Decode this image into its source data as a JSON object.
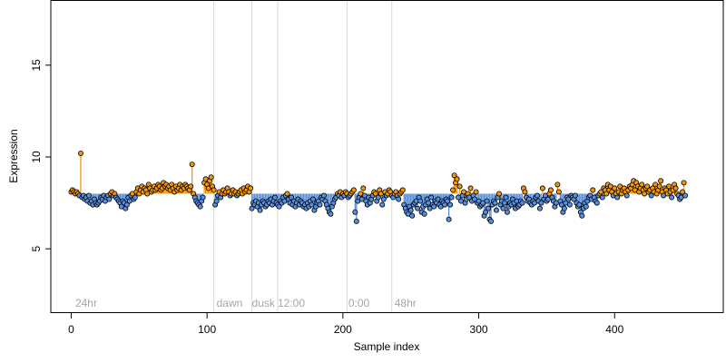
{
  "chart_data": {
    "type": "scatter",
    "title": "",
    "xlabel": "Sample index",
    "ylabel": "Expression",
    "xlim": [
      -15,
      480
    ],
    "ylim": [
      1.5,
      18.5
    ],
    "xticks": [
      0,
      100,
      200,
      300,
      400
    ],
    "yticks": [
      5,
      10,
      15
    ],
    "grid": false,
    "colors": {
      "baseline": "#5b8fd9",
      "above": "#f0960f",
      "point_stroke": "#000000",
      "separator": "#d9d9d9",
      "group_label": "#a6a6a6"
    },
    "baseline_y": 8.0,
    "group_labels": [
      {
        "text": "24hr",
        "x": 3
      },
      {
        "text": "dawn",
        "x": 107
      },
      {
        "text": "dusk",
        "x": 133
      },
      {
        "text": "12:00",
        "x": 152
      },
      {
        "text": "0:00",
        "x": 204
      },
      {
        "text": "48hr",
        "x": 238
      }
    ],
    "separators_x": [
      105,
      133,
      152,
      203,
      236
    ],
    "series": [
      {
        "values": [
          8.1,
          8.2,
          8.1,
          8.0,
          8.1,
          8.0,
          7.9,
          10.2,
          7.8,
          7.9,
          7.7,
          7.8,
          7.6,
          7.9,
          7.5,
          7.6,
          7.4,
          7.7,
          7.5,
          7.4,
          7.5,
          7.6,
          7.8,
          7.7,
          7.9,
          7.6,
          7.8,
          7.9,
          7.7,
          8.0,
          8.1,
          7.9,
          8.0,
          7.8,
          7.7,
          7.6,
          7.5,
          7.3,
          7.6,
          7.5,
          7.2,
          7.4,
          7.8,
          7.6,
          7.9,
          8.0,
          7.7,
          7.8,
          8.1,
          8.3,
          8.0,
          8.2,
          8.4,
          8.1,
          8.3,
          8.2,
          8.0,
          8.5,
          8.3,
          8.1,
          8.2,
          8.4,
          8.2,
          8.3,
          8.5,
          8.4,
          8.2,
          8.3,
          8.6,
          8.4,
          8.5,
          8.3,
          8.4,
          8.2,
          8.5,
          8.3,
          8.1,
          8.4,
          8.2,
          8.3,
          8.5,
          8.2,
          8.4,
          8.3,
          8.5,
          8.4,
          8.3,
          8.2,
          8.4,
          9.6,
          8.0,
          7.8,
          7.6,
          7.5,
          7.4,
          7.3,
          7.6,
          7.8,
          8.6,
          8.8,
          8.5,
          8.3,
          8.7,
          8.9,
          8.4,
          8.2,
          7.4,
          7.6,
          7.9,
          8.1,
          7.8,
          8.0,
          8.2,
          8.0,
          8.1,
          8.3,
          8.1,
          7.9,
          8.0,
          8.2,
          8.0,
          8.1,
          7.9,
          8.0,
          8.1,
          8.2,
          8.0,
          8.3,
          8.1,
          8.2,
          8.4,
          8.1,
          8.3,
          7.2,
          7.5,
          7.4,
          7.6,
          7.3,
          7.5,
          7.1,
          7.4,
          7.6,
          7.5,
          7.3,
          7.4,
          7.6,
          7.5,
          7.7,
          7.4,
          7.6,
          7.8,
          7.5,
          7.4,
          7.3,
          7.6,
          7.5,
          7.8,
          7.6,
          7.9,
          8.0,
          7.7,
          7.5,
          7.8,
          7.4,
          7.6,
          7.3,
          7.5,
          7.7,
          7.4,
          7.6,
          7.5,
          7.3,
          7.4,
          7.2,
          7.5,
          7.3,
          7.6,
          7.4,
          7.7,
          7.1,
          7.3,
          7.5,
          7.6,
          7.4,
          7.8,
          7.7,
          7.9,
          7.6,
          7.4,
          7.2,
          7.0,
          6.9,
          7.3,
          7.5,
          7.7,
          7.8,
          8.0,
          7.9,
          8.1,
          7.8,
          8.0,
          7.9,
          8.1,
          8.0,
          7.8,
          7.9,
          8.0,
          8.1,
          8.2,
          7.0,
          6.5,
          7.6,
          7.8,
          8.0,
          7.7,
          8.3,
          7.9,
          7.6,
          7.4,
          7.8,
          7.5,
          7.7,
          7.9,
          8.1,
          8.0,
          7.6,
          7.8,
          8.2,
          8.0,
          7.4,
          7.7,
          8.1,
          7.9,
          8.0,
          8.2,
          8.1,
          7.9,
          7.8,
          8.0,
          8.1,
          7.9,
          7.7,
          8.0,
          8.1,
          8.2,
          7.4,
          7.2,
          7.0,
          6.9,
          7.3,
          7.1,
          6.8,
          7.4,
          7.5,
          7.6,
          7.2,
          7.8,
          7.6,
          7.0,
          7.3,
          6.9,
          7.4,
          7.7,
          7.5,
          7.2,
          7.8,
          7.4,
          7.3,
          7.6,
          7.5,
          7.7,
          7.4,
          7.3,
          7.6,
          7.5,
          7.4,
          7.7,
          7.6,
          6.6,
          7.4,
          7.8,
          8.2,
          9.0,
          8.6,
          8.8,
          7.8,
          8.4,
          7.6,
          7.9,
          8.1,
          7.5,
          7.7,
          8.0,
          7.8,
          8.3,
          7.6,
          7.9,
          7.7,
          8.1,
          7.5,
          7.6,
          7.3,
          7.4,
          7.5,
          6.8,
          7.0,
          7.6,
          7.2,
          6.6,
          6.5,
          7.4,
          7.6,
          7.5,
          7.1,
          7.8,
          8.0,
          7.4,
          7.6,
          7.2,
          7.5,
          7.8,
          7.0,
          7.3,
          7.5,
          7.4,
          7.7,
          7.5,
          7.2,
          7.6,
          7.3,
          7.4,
          7.6,
          7.5,
          8.3,
          8.1,
          7.8,
          7.6,
          7.7,
          7.5,
          7.4,
          7.6,
          7.5,
          7.8,
          7.9,
          7.6,
          7.2,
          7.5,
          8.3,
          7.7,
          7.9,
          7.6,
          7.7,
          8.0,
          8.2,
          7.8,
          7.6,
          7.3,
          7.5,
          8.5,
          8.1,
          7.6,
          7.4,
          7.0,
          7.2,
          7.5,
          7.8,
          7.7,
          7.4,
          7.9,
          7.8,
          7.7,
          7.9,
          7.5,
          7.3,
          7.4,
          7.0,
          6.8,
          7.2,
          7.5,
          7.3,
          7.6,
          7.8,
          7.9,
          7.7,
          8.2,
          7.8,
          7.6,
          7.5,
          7.9,
          8.0,
          8.1,
          7.8,
          8.3,
          8.2,
          8.0,
          8.5,
          8.2,
          8.4,
          8.1,
          7.9,
          8.3,
          8.0,
          7.8,
          8.1,
          8.4,
          8.0,
          8.2,
          8.3,
          8.1,
          7.9,
          8.2,
          8.4,
          8.3,
          8.5,
          8.7,
          8.2,
          8.6,
          8.4,
          8.1,
          8.3,
          8.5,
          8.2,
          8.0,
          8.3,
          8.4,
          8.1,
          8.2,
          7.9,
          8.3,
          8.1,
          8.5,
          8.0,
          8.2,
          8.4,
          8.7,
          8.1,
          7.9,
          8.3,
          8.2,
          8.0,
          8.4,
          8.1,
          7.8,
          8.2,
          8.5,
          8.3,
          8.0,
          7.9,
          7.7,
          7.8,
          8.1,
          8.6,
          7.9
        ]
      }
    ]
  }
}
